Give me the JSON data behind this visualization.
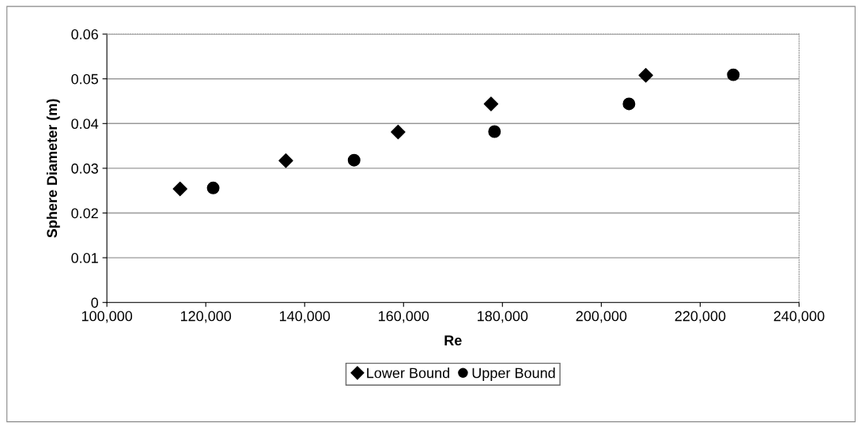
{
  "chart_data": {
    "type": "scatter",
    "xlabel": "Re",
    "ylabel": "Sphere Diameter (m)",
    "series": [
      {
        "name": "Lower Bound",
        "color": "#000000",
        "marker": "diamond",
        "x": [
          114800,
          136200,
          158900,
          177700,
          209000
        ],
        "values": [
          0.0254,
          0.0317,
          0.0381,
          0.0444,
          0.0508
        ]
      },
      {
        "name": "Upper Bound",
        "color": "#000000",
        "marker": "circle",
        "x": [
          121500,
          150000,
          178400,
          205600,
          226700
        ],
        "values": [
          0.0256,
          0.0318,
          0.0382,
          0.0444,
          0.0509
        ]
      }
    ],
    "xlim": [
      100000,
      240000
    ],
    "xticks": [
      {
        "value": 100000,
        "label": "100,000"
      },
      {
        "value": 120000,
        "label": "120,000"
      },
      {
        "value": 140000,
        "label": "140,000"
      },
      {
        "value": 160000,
        "label": "160,000"
      },
      {
        "value": 180000,
        "label": "180,000"
      },
      {
        "value": 200000,
        "label": "200,000"
      },
      {
        "value": 220000,
        "label": "220,000"
      },
      {
        "value": 240000,
        "label": "240,000"
      }
    ],
    "ylim": [
      0,
      0.06
    ],
    "yticks": [
      0,
      0.01,
      0.02,
      0.03,
      0.04,
      0.05,
      0.06
    ],
    "grid": "y",
    "legend": "bottom"
  }
}
